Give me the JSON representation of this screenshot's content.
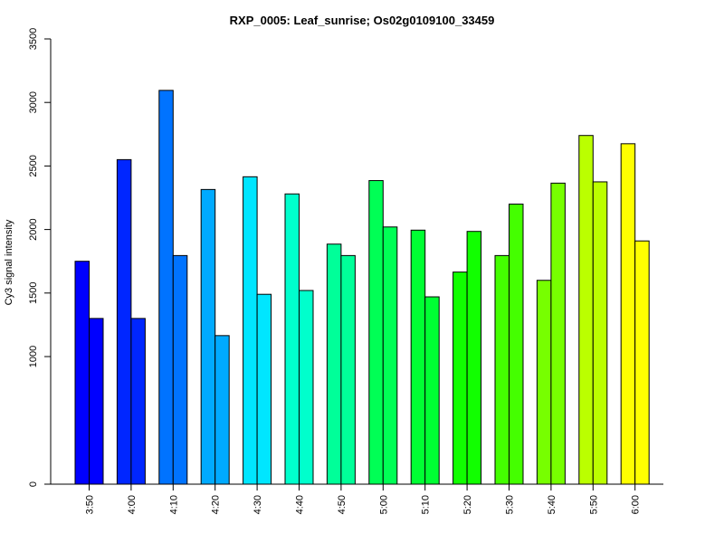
{
  "chart_data": {
    "type": "bar",
    "title": "RXP_0005: Leaf_sunrise; Os02g0109100_33459",
    "xlabel": "",
    "ylabel": "Cy3 signal intensity",
    "categories": [
      "3:50",
      "4:00",
      "4:10",
      "4:20",
      "4:30",
      "4:40",
      "4:50",
      "5:00",
      "5:10",
      "5:20",
      "5:30",
      "5:40",
      "5:50",
      "6:00"
    ],
    "y_ticks": [
      "0",
      "1000",
      "1500",
      "2000",
      "2500",
      "3000",
      "3500"
    ],
    "y_axis_breakpoints": {
      "zero": 0,
      "linear_start": 1000,
      "max": 3500
    },
    "series": [
      {
        "values": [
          1750,
          2550,
          3095,
          2315,
          2415,
          2280,
          1885,
          2385,
          1995,
          1665,
          1795,
          1600,
          2740,
          2675
        ]
      },
      {
        "values": [
          1300,
          1300,
          1795,
          1165,
          1490,
          1520,
          1795,
          2020,
          1470,
          1985,
          2200,
          2365,
          2375,
          1910
        ]
      }
    ],
    "colors": [
      "#0000FF",
      "#0026FF",
      "#0073FF",
      "#00AAFF",
      "#00E6FF",
      "#00FFCC",
      "#00FF99",
      "#00FF55",
      "#00FF33",
      "#11FF00",
      "#44FF00",
      "#77FF00",
      "#BBFF00",
      "#FFFF00"
    ],
    "grid": false,
    "legend": "none"
  }
}
